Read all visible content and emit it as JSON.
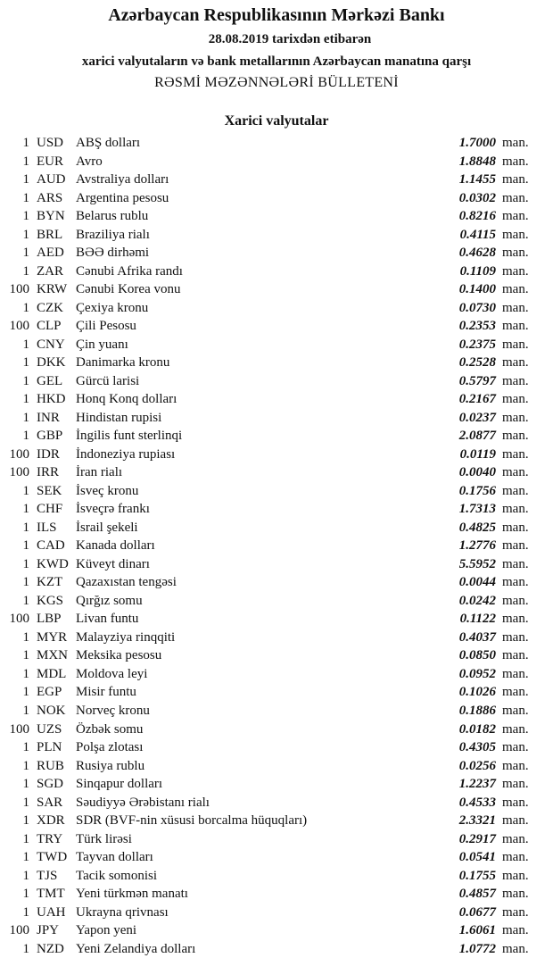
{
  "header": {
    "title": "Azərbaycan Respublikasının Mərkəzi Bankı",
    "date_line": "28.08.2019  tarixdən etibarən",
    "subtitle": "xarici valyutaların və bank metallarının Azərbaycan manatına qarşı",
    "bulletin": "RƏSMİ MƏZƏNNƏLƏRİ BÜLLETENİ",
    "section": "Xarici valyutalar"
  },
  "rates": [
    {
      "qty": "1",
      "code": "USD",
      "name": "ABŞ dolları",
      "value": "1.7000",
      "unit": "man."
    },
    {
      "qty": "1",
      "code": "EUR",
      "name": "Avro",
      "value": "1.8848",
      "unit": "man."
    },
    {
      "qty": "1",
      "code": "AUD",
      "name": "Avstraliya dolları",
      "value": "1.1455",
      "unit": "man."
    },
    {
      "qty": "1",
      "code": "ARS",
      "name": "Argentina pesosu",
      "value": "0.0302",
      "unit": "man."
    },
    {
      "qty": "1",
      "code": "BYN",
      "name": "Belarus rublu",
      "value": "0.8216",
      "unit": "man."
    },
    {
      "qty": "1",
      "code": "BRL",
      "name": "Braziliya rialı",
      "value": "0.4115",
      "unit": "man."
    },
    {
      "qty": "1",
      "code": "AED",
      "name": "BƏƏ dirhəmi",
      "value": "0.4628",
      "unit": "man."
    },
    {
      "qty": "1",
      "code": "ZAR",
      "name": "Cənubi Afrika randı",
      "value": "0.1109",
      "unit": "man."
    },
    {
      "qty": "100",
      "code": "KRW",
      "name": "Cənubi Korea vonu",
      "value": "0.1400",
      "unit": "man."
    },
    {
      "qty": "1",
      "code": "CZK",
      "name": "Çexiya kronu",
      "value": "0.0730",
      "unit": "man."
    },
    {
      "qty": "100",
      "code": "CLP",
      "name": "Çili Pesosu",
      "value": "0.2353",
      "unit": "man."
    },
    {
      "qty": "1",
      "code": "CNY",
      "name": "Çin yuanı",
      "value": "0.2375",
      "unit": "man."
    },
    {
      "qty": "1",
      "code": "DKK",
      "name": "Danimarka kronu",
      "value": "0.2528",
      "unit": "man."
    },
    {
      "qty": "1",
      "code": "GEL",
      "name": "Gürcü larisi",
      "value": "0.5797",
      "unit": "man."
    },
    {
      "qty": "1",
      "code": "HKD",
      "name": "Honq Konq dolları",
      "value": "0.2167",
      "unit": "man."
    },
    {
      "qty": "1",
      "code": "INR",
      "name": "Hindistan rupisi",
      "value": "0.0237",
      "unit": "man."
    },
    {
      "qty": "1",
      "code": "GBP",
      "name": "İngilis funt sterlinqi",
      "value": "2.0877",
      "unit": "man."
    },
    {
      "qty": "100",
      "code": "IDR",
      "name": "İndoneziya rupiası",
      "value": "0.0119",
      "unit": "man."
    },
    {
      "qty": "100",
      "code": "IRR",
      "name": "İran rialı",
      "value": "0.0040",
      "unit": "man."
    },
    {
      "qty": "1",
      "code": "SEK",
      "name": "İsveç kronu",
      "value": "0.1756",
      "unit": "man."
    },
    {
      "qty": "1",
      "code": "CHF",
      "name": "İsveçrə frankı",
      "value": "1.7313",
      "unit": "man."
    },
    {
      "qty": "1",
      "code": "ILS",
      "name": "İsrail şekeli",
      "value": "0.4825",
      "unit": "man."
    },
    {
      "qty": "1",
      "code": "CAD",
      "name": "Kanada dolları",
      "value": "1.2776",
      "unit": "man."
    },
    {
      "qty": "1",
      "code": "KWD",
      "name": "Küveyt dinarı",
      "value": "5.5952",
      "unit": "man."
    },
    {
      "qty": "1",
      "code": "KZT",
      "name": "Qazaxıstan tengəsi",
      "value": "0.0044",
      "unit": "man."
    },
    {
      "qty": "1",
      "code": "KGS",
      "name": "Qırğız somu",
      "value": "0.0242",
      "unit": "man."
    },
    {
      "qty": "100",
      "code": "LBP",
      "name": "Livan funtu",
      "value": "0.1122",
      "unit": "man."
    },
    {
      "qty": "1",
      "code": "MYR",
      "name": "Malayziya rinqqiti",
      "value": "0.4037",
      "unit": "man."
    },
    {
      "qty": "1",
      "code": "MXN",
      "name": "Meksika pesosu",
      "value": "0.0850",
      "unit": "man."
    },
    {
      "qty": "1",
      "code": "MDL",
      "name": "Moldova leyi",
      "value": "0.0952",
      "unit": "man."
    },
    {
      "qty": "1",
      "code": "EGP",
      "name": "Misir funtu",
      "value": "0.1026",
      "unit": "man."
    },
    {
      "qty": "1",
      "code": "NOK",
      "name": "Norveç kronu",
      "value": "0.1886",
      "unit": "man."
    },
    {
      "qty": "100",
      "code": "UZS",
      "name": "Özbək somu",
      "value": "0.0182",
      "unit": "man."
    },
    {
      "qty": "1",
      "code": "PLN",
      "name": "Polşa zlotası",
      "value": "0.4305",
      "unit": "man."
    },
    {
      "qty": "1",
      "code": "RUB",
      "name": "Rusiya rublu",
      "value": "0.0256",
      "unit": "man."
    },
    {
      "qty": "1",
      "code": "SGD",
      "name": "Sinqapur dolları",
      "value": "1.2237",
      "unit": "man."
    },
    {
      "qty": "1",
      "code": "SAR",
      "name": "Səudiyyə Ərəbistanı rialı",
      "value": "0.4533",
      "unit": "man."
    },
    {
      "qty": "1",
      "code": "XDR",
      "name": "SDR (BVF-nin xüsusi borcalma hüquqları)",
      "value": "2.3321",
      "unit": "man."
    },
    {
      "qty": "1",
      "code": "TRY",
      "name": "Türk lirəsi",
      "value": "0.2917",
      "unit": "man."
    },
    {
      "qty": "1",
      "code": "TWD",
      "name": "Tayvan dolları",
      "value": "0.0541",
      "unit": "man."
    },
    {
      "qty": "1",
      "code": "TJS",
      "name": "Tacik somonisi",
      "value": "0.1755",
      "unit": "man."
    },
    {
      "qty": "1",
      "code": "TMT",
      "name": "Yeni türkmən manatı",
      "value": "0.4857",
      "unit": "man."
    },
    {
      "qty": "1",
      "code": "UAH",
      "name": "Ukrayna qrivnası",
      "value": "0.0677",
      "unit": "man."
    },
    {
      "qty": "100",
      "code": "JPY",
      "name": "Yapon yeni",
      "value": "1.6061",
      "unit": "man."
    },
    {
      "qty": "1",
      "code": "NZD",
      "name": "Yeni Zelandiya dolları",
      "value": "1.0772",
      "unit": "man."
    }
  ]
}
